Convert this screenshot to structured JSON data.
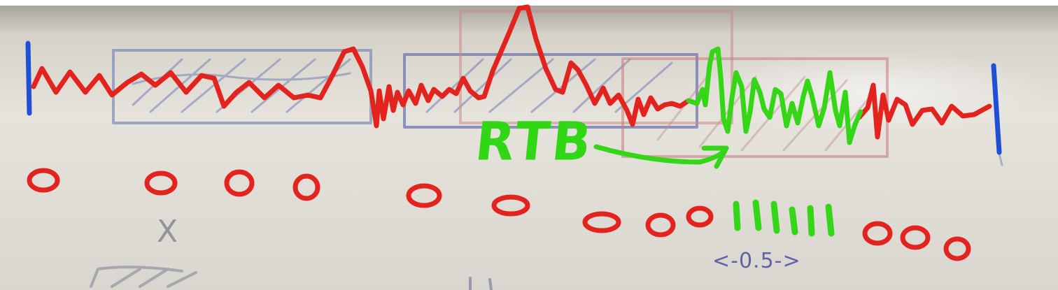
{
  "image": {
    "kind": "photo of a whiteboard with hand-drawn marker annotations",
    "colors": {
      "signal_red": "#e3231d",
      "signal_green": "#34d617",
      "marker_blue": "#1f4fd6",
      "faded_blue_ink": "#6f7fb0",
      "faded_red_ink": "#c98a8a",
      "board": "#e2dfd8"
    }
  },
  "annotations": {
    "green_label": "RTB",
    "board_x": "X",
    "interval": "<-0.5->"
  }
}
